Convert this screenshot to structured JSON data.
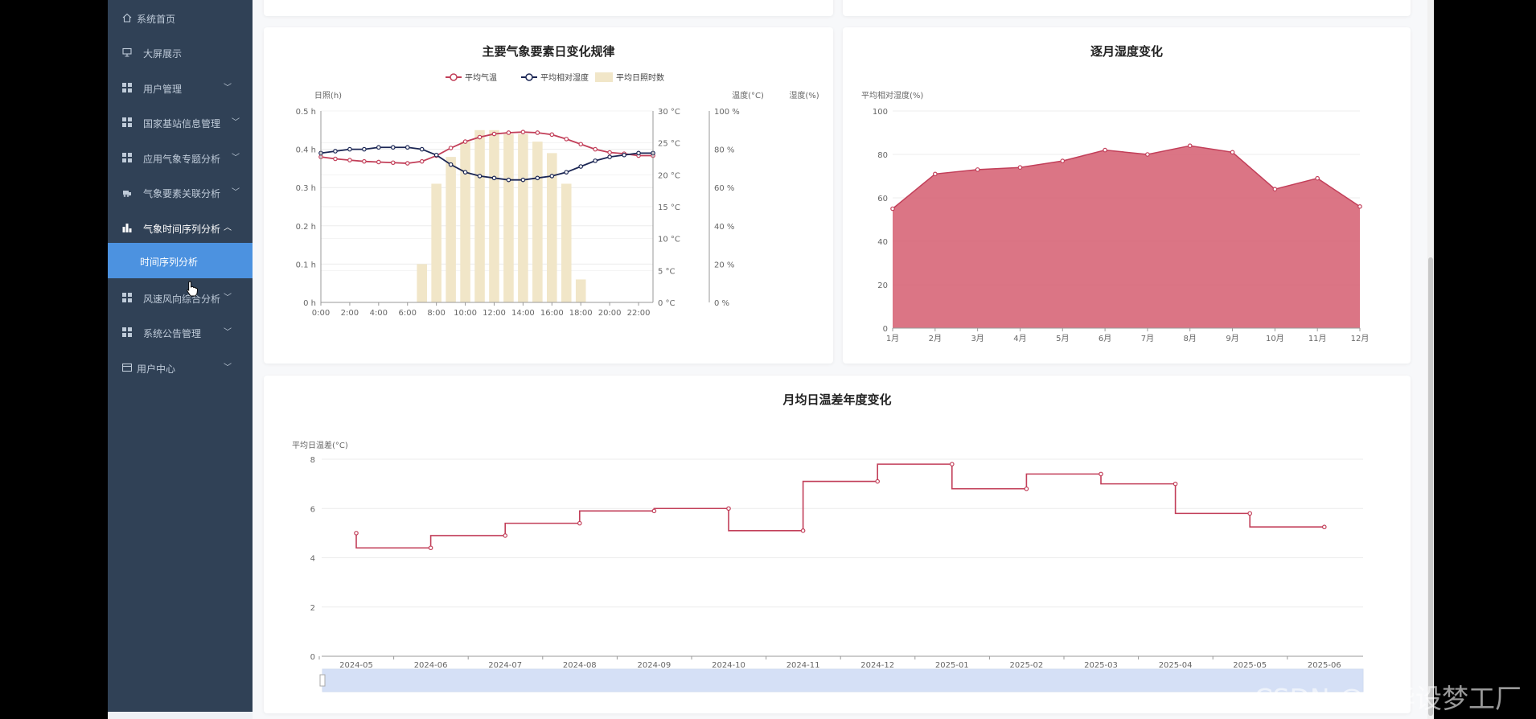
{
  "sidebar": {
    "items": [
      {
        "label": "系统首页",
        "icon": "home-icon"
      },
      {
        "label": "大屏展示",
        "icon": "presentation-icon"
      },
      {
        "label": "用户管理",
        "icon": "grid-icon"
      },
      {
        "label": "国家基站信息管理",
        "icon": "grid-icon"
      },
      {
        "label": "应用气象专题分析",
        "icon": "grid-icon"
      },
      {
        "label": "气象要素关联分析",
        "icon": "bulldozer-icon"
      },
      {
        "label": "气象时间序列分析",
        "icon": "bar-chart-icon"
      },
      {
        "label": "风速风向综合分析",
        "icon": "grid-icon"
      },
      {
        "label": "系统公告管理",
        "icon": "grid-icon"
      },
      {
        "label": "用户中心",
        "icon": "card-icon"
      }
    ],
    "active_sub": "时间序列分析"
  },
  "colors": {
    "sidebar_bg": "#304156",
    "active_bg": "#4c92e0",
    "temp_line": "#c23f59",
    "humidity_line": "#1b2654",
    "sunshine_bar": "#f1e6c8",
    "area_fill": "#d8697b"
  },
  "watermark": "CSDN @IT毕设梦工厂",
  "chart_data": [
    {
      "type": "line",
      "title": "主要气象要素日变化规律",
      "legend": [
        "平均气温",
        "平均相对湿度",
        "平均日照时数"
      ],
      "legend_position": "top",
      "x": [
        "0:00",
        "1:00",
        "2:00",
        "3:00",
        "4:00",
        "5:00",
        "6:00",
        "7:00",
        "8:00",
        "9:00",
        "10:00",
        "11:00",
        "12:00",
        "13:00",
        "14:00",
        "15:00",
        "16:00",
        "17:00",
        "18:00",
        "19:00",
        "20:00",
        "21:00",
        "22:00",
        "23:00"
      ],
      "x_tick_labels": [
        "0:00",
        "2:00",
        "4:00",
        "6:00",
        "8:00",
        "10:00",
        "12:00",
        "14:00",
        "16:00",
        "18:00",
        "20:00",
        "22:00"
      ],
      "axes": {
        "left": {
          "label": "日照(h)",
          "range": [
            0,
            0.5
          ],
          "ticks": [
            "0 h",
            "0.1 h",
            "0.2 h",
            "0.3 h",
            "0.4 h",
            "0.5 h"
          ]
        },
        "right1": {
          "label": "温度(°C)",
          "range": [
            0,
            30
          ],
          "ticks": [
            "0 °C",
            "5 °C",
            "10 °C",
            "15 °C",
            "20 °C",
            "25 °C",
            "30 °C"
          ]
        },
        "right2": {
          "label": "湿度(%)",
          "range": [
            0,
            100
          ],
          "ticks": [
            "0 %",
            "20 %",
            "40 %",
            "60 %",
            "80 %",
            "100 %"
          ]
        }
      },
      "series": [
        {
          "name": "平均日照时数",
          "type": "bar",
          "axis": "left",
          "values": [
            0,
            0,
            0,
            0,
            0,
            0,
            0,
            0.1,
            0.31,
            0.38,
            0.42,
            0.45,
            0.45,
            0.44,
            0.44,
            0.42,
            0.39,
            0.31,
            0.06,
            0,
            0,
            0,
            0,
            0
          ]
        },
        {
          "name": "平均气温",
          "type": "line",
          "axis": "right1",
          "values": [
            22.8,
            22.5,
            22.3,
            22.1,
            22.0,
            21.9,
            21.8,
            22.1,
            23.0,
            24.2,
            25.2,
            25.9,
            26.4,
            26.6,
            26.7,
            26.6,
            26.3,
            25.6,
            24.8,
            24.0,
            23.5,
            23.3,
            23.0,
            23.0
          ]
        },
        {
          "name": "平均相对湿度",
          "type": "line",
          "axis": "right2",
          "values": [
            78,
            79,
            80,
            80,
            81,
            81,
            81,
            80,
            77,
            72,
            68,
            66,
            65,
            64,
            64,
            65,
            66,
            68,
            71,
            74,
            76,
            77,
            78,
            78
          ]
        }
      ]
    },
    {
      "type": "area",
      "title": "逐月湿度变化",
      "ylabel": "平均相对湿度(%)",
      "ylim": [
        0,
        100
      ],
      "y_ticks": [
        0,
        20,
        40,
        60,
        80,
        100
      ],
      "categories": [
        "1月",
        "2月",
        "3月",
        "4月",
        "5月",
        "6月",
        "7月",
        "8月",
        "9月",
        "10月",
        "11月",
        "12月"
      ],
      "values": [
        55,
        71,
        73,
        74,
        77,
        82,
        80,
        84,
        81,
        64,
        69,
        56
      ],
      "grid": true
    },
    {
      "type": "line",
      "step": "start",
      "title": "月均日温差年度变化",
      "ylabel": "平均日温差(°C)",
      "ylim": [
        0,
        8
      ],
      "y_ticks": [
        0,
        2,
        4,
        6,
        8
      ],
      "categories": [
        "2024-05",
        "2024-06",
        "2024-07",
        "2024-08",
        "2024-09",
        "2024-10",
        "2024-11",
        "2024-12",
        "2025-01",
        "2025-02",
        "2025-03",
        "2025-04",
        "2025-05",
        "2025-06"
      ],
      "values": [
        5.0,
        4.4,
        4.9,
        5.4,
        5.9,
        6.0,
        5.1,
        7.1,
        7.8,
        6.8,
        7.4,
        7.0,
        5.8,
        5.25
      ],
      "grid": true,
      "data_zoom": true
    }
  ]
}
